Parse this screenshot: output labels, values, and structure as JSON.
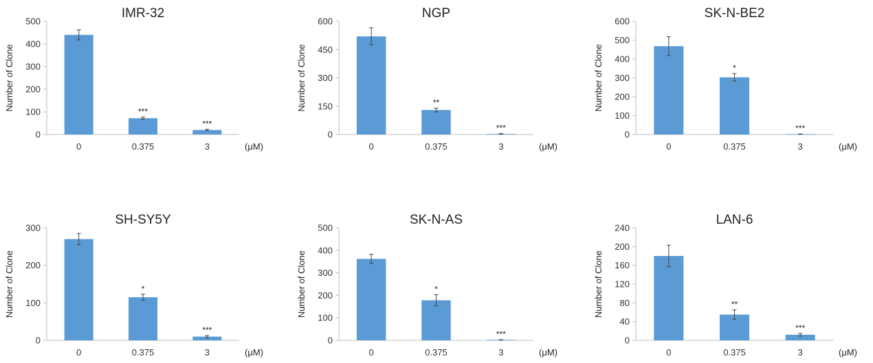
{
  "unit_label": "(μM)",
  "colors": {
    "bar": "#5b9bd5",
    "bar_edge": "#4a8ac4",
    "axis": "#bfbfbf",
    "text": "#222222",
    "tick": "#333333"
  },
  "chart_data": [
    {
      "type": "bar",
      "title": "IMR-32",
      "ylabel": "Number of Clone",
      "xlabel": "(μM)",
      "categories": [
        "0",
        "0.375",
        "3"
      ],
      "values": [
        440,
        72,
        20
      ],
      "errors": [
        22,
        5,
        3
      ],
      "significance": [
        "",
        "***",
        "***"
      ],
      "ylim": [
        0,
        500
      ],
      "yticks": [
        "0",
        "100",
        "200",
        "300",
        "400",
        "500"
      ],
      "grid": false
    },
    {
      "type": "bar",
      "title": "NGP",
      "ylabel": "Number of Clone",
      "xlabel": "(μM)",
      "categories": [
        "0",
        "0.375",
        "3"
      ],
      "values": [
        520,
        130,
        3
      ],
      "errors": [
        45,
        10,
        2
      ],
      "significance": [
        "",
        "**",
        "***"
      ],
      "ylim": [
        0,
        600
      ],
      "yticks": [
        "0",
        "150",
        "300",
        "450",
        "600"
      ],
      "grid": false
    },
    {
      "type": "bar",
      "title": "SK-N-BE2",
      "ylabel": "Number of Clone",
      "xlabel": "(μM)",
      "categories": [
        "0",
        "0.375",
        "3"
      ],
      "values": [
        468,
        303,
        2
      ],
      "errors": [
        50,
        20,
        1
      ],
      "significance": [
        "",
        "*",
        "***"
      ],
      "ylim": [
        0,
        600
      ],
      "yticks": [
        "0",
        "100",
        "200",
        "300",
        "400",
        "500",
        "600"
      ],
      "grid": false
    },
    {
      "type": "bar",
      "title": "SH-SY5Y",
      "ylabel": "Number of Clone",
      "xlabel": "(μM)",
      "categories": [
        "0",
        "0.375",
        "3"
      ],
      "values": [
        270,
        115,
        10
      ],
      "errors": [
        15,
        8,
        3
      ],
      "significance": [
        "",
        "*",
        "***"
      ],
      "ylim": [
        0,
        300
      ],
      "yticks": [
        "0",
        "100",
        "200",
        "300"
      ],
      "grid": false
    },
    {
      "type": "bar",
      "title": "SK-N-AS",
      "ylabel": "Number of Clone",
      "xlabel": "(μM)",
      "categories": [
        "0",
        "0.375",
        "3"
      ],
      "values": [
        362,
        178,
        2
      ],
      "errors": [
        20,
        25,
        1
      ],
      "significance": [
        "",
        "*",
        "***"
      ],
      "ylim": [
        0,
        500
      ],
      "yticks": [
        "0",
        "100",
        "200",
        "300",
        "400",
        "500"
      ],
      "grid": false
    },
    {
      "type": "bar",
      "title": "LAN-6",
      "ylabel": "Number of Clone",
      "xlabel": "(μM)",
      "categories": [
        "0",
        "0.375",
        "3"
      ],
      "values": [
        180,
        55,
        12
      ],
      "errors": [
        23,
        10,
        3
      ],
      "significance": [
        "",
        "**",
        "***"
      ],
      "ylim": [
        0,
        240
      ],
      "yticks": [
        "0",
        "40",
        "80",
        "120",
        "160",
        "200",
        "240"
      ],
      "grid": false
    }
  ]
}
